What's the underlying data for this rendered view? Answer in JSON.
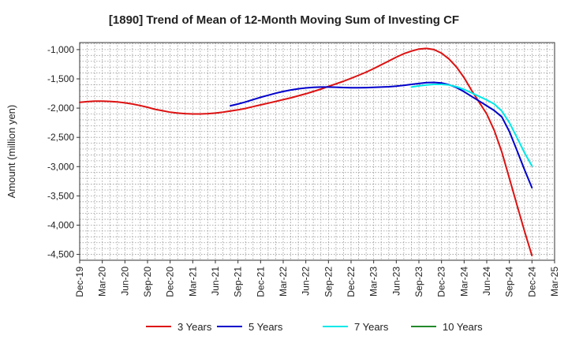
{
  "chart_data": {
    "type": "line",
    "title": "[1890]  Trend of Mean of 12-Month Moving Sum of Investing CF",
    "ylabel": "Amount (million yen)",
    "xlabel": "",
    "ylim": [
      -4600,
      -880
    ],
    "yticks": [
      -1000,
      -1500,
      -2000,
      -2500,
      -3000,
      -3500,
      -4000,
      -4500
    ],
    "ytick_labels": [
      "-1,000",
      "-1,500",
      "-2,000",
      "-2,500",
      "-3,000",
      "-3,500",
      "-4,000",
      "-4,500"
    ],
    "x_tick_labels": [
      "Dec-19",
      "Mar-20",
      "Jun-20",
      "Sep-20",
      "Dec-20",
      "Mar-21",
      "Jun-21",
      "Sep-21",
      "Dec-21",
      "Mar-22",
      "Jun-22",
      "Sep-22",
      "Dec-22",
      "Mar-23",
      "Jun-23",
      "Sep-23",
      "Dec-23",
      "Mar-24",
      "Jun-24",
      "Sep-24",
      "Dec-24",
      "Mar-25"
    ],
    "grid": true,
    "legend_position": "bottom",
    "series": [
      {
        "name": "3 Years",
        "color": "#dd1111",
        "x": [
          0,
          0.333,
          0.667,
          1,
          1.333,
          1.667,
          2,
          2.333,
          2.667,
          3,
          3.333,
          3.667,
          4,
          4.333,
          4.667,
          5,
          5.333,
          5.667,
          6,
          6.333,
          6.667,
          7,
          7.333,
          7.667,
          8,
          8.333,
          8.667,
          9,
          9.333,
          9.667,
          10,
          10.333,
          10.667,
          11,
          11.333,
          11.667,
          12,
          12.333,
          12.667,
          13,
          13.333,
          13.667,
          14,
          14.333,
          14.667,
          15,
          15.333,
          15.667,
          16,
          16.333,
          16.667,
          17,
          17.333,
          17.667,
          18,
          18.333,
          18.667,
          19,
          19.333,
          19.667,
          20
        ],
        "values": [
          -1900,
          -1890,
          -1880,
          -1880,
          -1885,
          -1895,
          -1910,
          -1930,
          -1955,
          -1985,
          -2020,
          -2045,
          -2070,
          -2085,
          -2095,
          -2100,
          -2100,
          -2095,
          -2085,
          -2070,
          -2050,
          -2030,
          -2005,
          -1975,
          -1945,
          -1915,
          -1885,
          -1855,
          -1825,
          -1790,
          -1755,
          -1715,
          -1675,
          -1630,
          -1585,
          -1540,
          -1490,
          -1440,
          -1385,
          -1325,
          -1260,
          -1195,
          -1130,
          -1070,
          -1025,
          -990,
          -980,
          -1000,
          -1060,
          -1160,
          -1300,
          -1480,
          -1700,
          -1900,
          -2100,
          -2380,
          -2750,
          -3200,
          -3650,
          -4100,
          -4520
        ]
      },
      {
        "name": "5 Years",
        "color": "#0000cc",
        "x": [
          6.667,
          7,
          7.333,
          7.667,
          8,
          8.333,
          8.667,
          9,
          9.333,
          9.667,
          10,
          10.333,
          10.667,
          11,
          11.333,
          11.667,
          12,
          12.333,
          12.667,
          13,
          13.333,
          13.667,
          14,
          14.333,
          14.667,
          15,
          15.333,
          15.667,
          16,
          16.333,
          16.667,
          17,
          17.333,
          17.667,
          18,
          18.333,
          18.667,
          19,
          19.333,
          19.667,
          20
        ],
        "values": [
          -1960,
          -1930,
          -1895,
          -1855,
          -1815,
          -1780,
          -1745,
          -1715,
          -1690,
          -1670,
          -1655,
          -1645,
          -1640,
          -1640,
          -1643,
          -1648,
          -1652,
          -1652,
          -1650,
          -1645,
          -1640,
          -1635,
          -1625,
          -1610,
          -1595,
          -1580,
          -1565,
          -1560,
          -1570,
          -1600,
          -1650,
          -1720,
          -1800,
          -1880,
          -1960,
          -2040,
          -2150,
          -2400,
          -2720,
          -3050,
          -3360
        ]
      },
      {
        "name": "7 Years",
        "color": "#00e8e8",
        "x": [
          14.667,
          15,
          15.333,
          15.667,
          16,
          16.333,
          16.667,
          17,
          17.333,
          17.667,
          18,
          18.333,
          18.667,
          19,
          19.333,
          19.667,
          20
        ],
        "values": [
          -1640,
          -1620,
          -1605,
          -1595,
          -1595,
          -1605,
          -1635,
          -1680,
          -1740,
          -1800,
          -1860,
          -1930,
          -2050,
          -2250,
          -2500,
          -2760,
          -2990
        ]
      },
      {
        "name": "10 Years",
        "color": "#22882a",
        "x": [],
        "values": []
      }
    ]
  }
}
